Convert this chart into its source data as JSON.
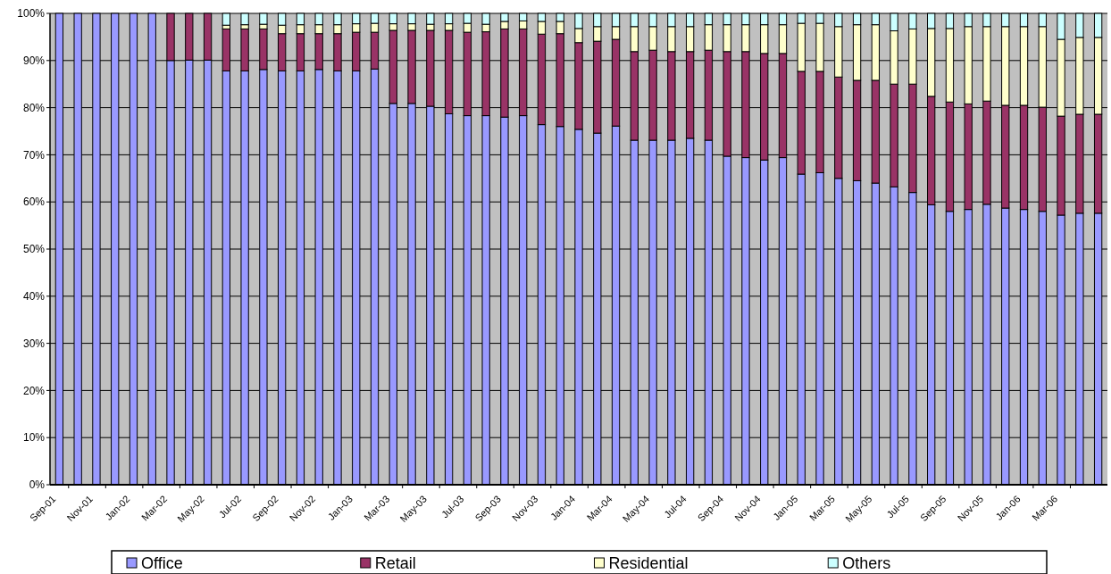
{
  "chart_data": {
    "type": "bar",
    "stacked": true,
    "categories": [
      "Sep-01",
      null,
      "Nov-01",
      null,
      "Jan-02",
      null,
      "Mar-02",
      null,
      "May-02",
      null,
      "Jul-02",
      null,
      "Sep-02",
      null,
      "Nov-02",
      null,
      "Jan-03",
      null,
      "Mar-03",
      null,
      "May-03",
      null,
      "Jul-03",
      null,
      "Sep-03",
      null,
      "Nov-03",
      null,
      "Jan-04",
      null,
      "Mar-04",
      null,
      "May-04",
      null,
      "Jul-04",
      null,
      "Sep-04",
      null,
      "Nov-04",
      null,
      "Jan-05",
      null,
      "Mar-05",
      null,
      "May-05",
      null,
      "Jul-05",
      null,
      "Sep-05",
      null,
      "Nov-05",
      null,
      "Jan-06",
      null,
      "Mar-06",
      null,
      null
    ],
    "series": [
      {
        "name": "Office",
        "color": "#9999ff",
        "values": [
          100,
          100,
          100,
          100,
          100,
          100,
          90,
          90.1,
          90.1,
          87.8,
          87.8,
          88.1,
          87.8,
          87.8,
          88.1,
          87.8,
          87.8,
          88.2,
          80.9,
          80.9,
          80.3,
          78.7,
          78.3,
          78.3,
          78.0,
          78.3,
          76.4,
          76.0,
          75.4,
          74.6,
          76.1,
          73.1,
          73.1,
          73.1,
          73.5,
          73.1,
          69.7,
          69.4,
          68.9,
          69.4,
          65.9,
          66.2,
          65.0,
          64.5,
          64.0,
          63.2,
          62.0,
          59.4,
          58.0,
          58.4,
          59.5,
          58.7,
          58.4,
          58.0,
          57.2,
          57.6,
          57.6
        ]
      },
      {
        "name": "Retail",
        "color": "#993366",
        "values": [
          0,
          0,
          0,
          0,
          0,
          0,
          10,
          9.9,
          9.9,
          8.9,
          8.9,
          8.6,
          7.9,
          7.9,
          7.6,
          7.9,
          8.2,
          7.8,
          15.5,
          15.5,
          16.1,
          17.7,
          17.7,
          17.8,
          18.7,
          18.4,
          19.2,
          19.7,
          18.4,
          19.5,
          18.4,
          18.8,
          19.1,
          18.8,
          18.4,
          19.1,
          22.2,
          22.5,
          22.6,
          22.1,
          21.8,
          21.5,
          21.5,
          21.3,
          21.8,
          21.8,
          23.0,
          23.0,
          23.2,
          22.4,
          21.9,
          21.8,
          22.1,
          22.1,
          21.0,
          21.0,
          21.0
        ]
      },
      {
        "name": "Residential",
        "color": "#ffffcc",
        "values": [
          0,
          0,
          0,
          0,
          0,
          0,
          0,
          0,
          0,
          0.8,
          0.9,
          1.0,
          1.8,
          1.9,
          1.9,
          1.9,
          1.8,
          1.9,
          1.4,
          1.4,
          1.3,
          1.4,
          1.9,
          1.6,
          1.6,
          1.7,
          2.7,
          2.6,
          3.0,
          3.1,
          2.7,
          5.3,
          5.0,
          5.3,
          5.3,
          5.4,
          5.7,
          5.7,
          6.1,
          6.1,
          10.2,
          10.2,
          10.7,
          11.8,
          11.8,
          11.3,
          11.7,
          14.4,
          15.6,
          16.4,
          15.8,
          16.7,
          16.7,
          17.1,
          16.3,
          16.3,
          16.3
        ]
      },
      {
        "name": "Others",
        "color": "#ccffff",
        "values": [
          0,
          0,
          0,
          0,
          0,
          0,
          0,
          0,
          0,
          2.5,
          2.4,
          2.3,
          2.5,
          2.4,
          2.4,
          2.4,
          2.2,
          2.1,
          2.2,
          2.2,
          2.3,
          2.2,
          2.1,
          2.3,
          1.7,
          1.6,
          1.7,
          1.7,
          3.2,
          2.8,
          2.8,
          2.8,
          2.8,
          2.8,
          2.8,
          2.4,
          2.4,
          2.4,
          2.4,
          2.4,
          2.1,
          2.1,
          2.8,
          2.4,
          2.4,
          3.7,
          3.3,
          3.2,
          3.2,
          2.8,
          2.8,
          2.8,
          2.8,
          2.8,
          5.5,
          5.1,
          5.1
        ]
      }
    ],
    "ylim": [
      0,
      100
    ],
    "yticks": [
      {
        "value": 0,
        "label": "0%"
      },
      {
        "value": 10,
        "label": "10%"
      },
      {
        "value": 20,
        "label": "20%"
      },
      {
        "value": 30,
        "label": "30%"
      },
      {
        "value": 40,
        "label": "40%"
      },
      {
        "value": 50,
        "label": "50%"
      },
      {
        "value": 60,
        "label": "60%"
      },
      {
        "value": 70,
        "label": "70%"
      },
      {
        "value": 80,
        "label": "80%"
      },
      {
        "value": 90,
        "label": "90%"
      },
      {
        "value": 100,
        "label": "100%"
      }
    ],
    "grid": "y",
    "legend": "bottom"
  }
}
